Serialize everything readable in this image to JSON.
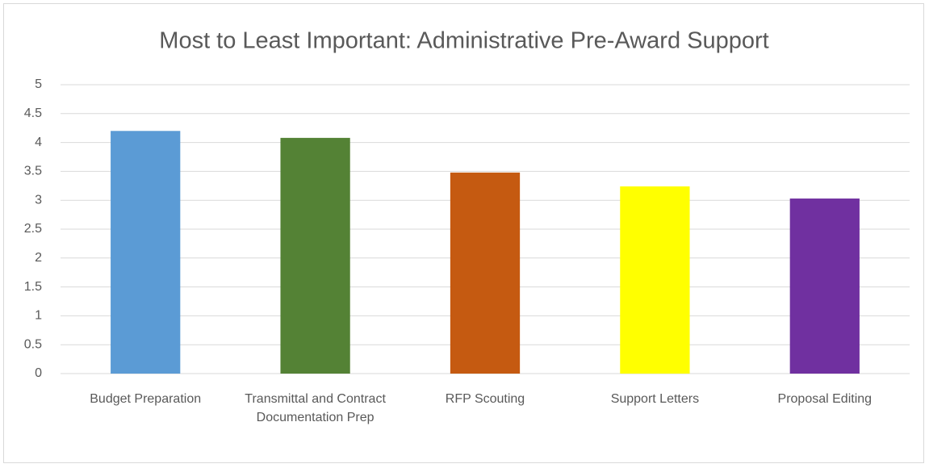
{
  "chart_data": {
    "type": "bar",
    "title": "Most to Least Important: Administrative Pre-Award Support",
    "categories": [
      "Budget Preparation",
      "Transmittal and Contract Documentation Prep",
      "RFP Scouting",
      "Support Letters",
      "Proposal Editing"
    ],
    "values": [
      4.2,
      4.08,
      3.48,
      3.24,
      3.03
    ],
    "colors": [
      "#5b9bd5",
      "#548235",
      "#c55a11",
      "#ffff00",
      "#7030a0"
    ],
    "ylim": [
      0,
      5
    ],
    "yticks": [
      0,
      0.5,
      1,
      1.5,
      2,
      2.5,
      3,
      3.5,
      4,
      4.5,
      5
    ],
    "grid": true
  }
}
